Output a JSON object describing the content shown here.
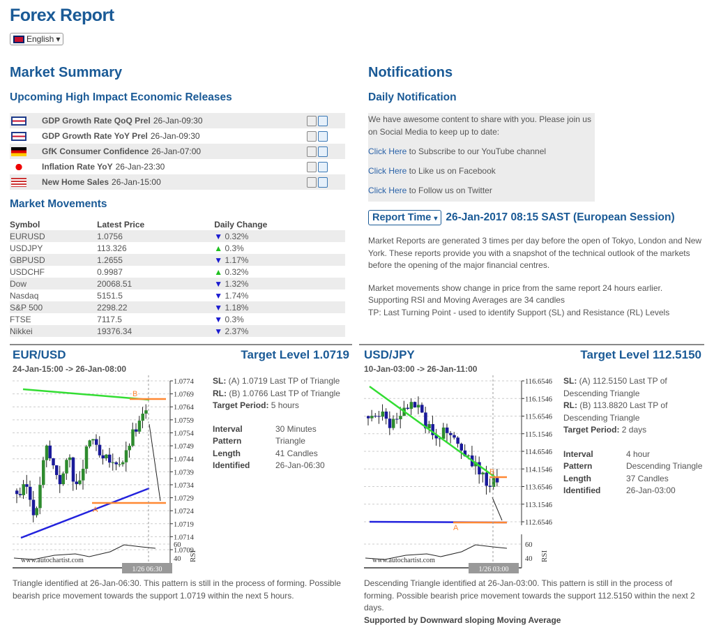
{
  "header": {
    "title": "Forex Report",
    "language": "English"
  },
  "market_summary": {
    "title": "Market Summary",
    "releases_title": "Upcoming High Impact Economic Releases",
    "releases": [
      {
        "flag": "uk-flag",
        "name": "GDP Growth Rate QoQ Prel",
        "time": "26-Jan-09:30"
      },
      {
        "flag": "uk-flag",
        "name": "GDP Growth Rate YoY Prel",
        "time": "26-Jan-09:30"
      },
      {
        "flag": "germany-flag",
        "name": "GfK Consumer Confidence",
        "time": "26-Jan-07:00"
      },
      {
        "flag": "japan-flag",
        "name": "Inflation Rate YoY",
        "time": "26-Jan-23:30"
      },
      {
        "flag": "us-flag",
        "name": "New Home Sales",
        "time": "26-Jan-15:00"
      }
    ],
    "movements_title": "Market Movements",
    "columns": [
      "Symbol",
      "Latest Price",
      "Daily Change"
    ],
    "movements": [
      {
        "symbol": "EURUSD",
        "price": "1.0756",
        "dir": "down",
        "change": "0.32%"
      },
      {
        "symbol": "USDJPY",
        "price": "113.326",
        "dir": "up",
        "change": "0.3%"
      },
      {
        "symbol": "GBPUSD",
        "price": "1.2655",
        "dir": "down",
        "change": "1.17%"
      },
      {
        "symbol": "USDCHF",
        "price": "0.9987",
        "dir": "up",
        "change": "0.32%"
      },
      {
        "symbol": "Dow",
        "price": "20068.51",
        "dir": "down",
        "change": "1.32%"
      },
      {
        "symbol": "Nasdaq",
        "price": "5151.5",
        "dir": "down",
        "change": "1.74%"
      },
      {
        "symbol": "S&P 500",
        "price": "2298.22",
        "dir": "down",
        "change": "1.18%"
      },
      {
        "symbol": "FTSE",
        "price": "7117.5",
        "dir": "down",
        "change": "0.3%"
      },
      {
        "symbol": "Nikkei",
        "price": "19376.34",
        "dir": "down",
        "change": "2.37%"
      }
    ]
  },
  "notifications": {
    "title": "Notifications",
    "daily_title": "Daily Notification",
    "intro": "We have awesome content to share with you. Please join us on Social Media to keep up to date:",
    "links": [
      {
        "link": "Click Here",
        "text": " to Subscribe to our YouTube channel"
      },
      {
        "link": "Click Here",
        "text": " to Like us on Facebook"
      },
      {
        "link": "Click Here",
        "text": " to Follow us on Twitter"
      }
    ],
    "report_time_label": "Report Time",
    "report_time": "26-Jan-2017 08:15 SAST (European Session)",
    "para1": "Market Reports are generated 3 times per day before the open of Tokyo, London and New York. These reports provide you with a snapshot of the technical outlook of the markets before the opening of the major financial centres.",
    "para2": "Market movements show change in price from the same report 24 hours earlier.",
    "para3": "Supporting RSI and Moving Averages are 34 candles",
    "para4": "TP: Last Turning Point - used to identify Support (SL) and Resistance (RL) Levels"
  },
  "colors": {
    "up": "#2e8b2e",
    "down": "#1a1a9a",
    "resistance": "#33dd33",
    "support": "#2222dd",
    "level": "#ff8833"
  },
  "charts": [
    {
      "pair": "EUR/USD",
      "target": "Target Level 1.0719",
      "range": "24-Jan-15:00 -> 26-Jan-08:00",
      "sl_label": "SL:",
      "sl": " (A) 1.0719 Last TP of Triangle",
      "rl_label": "RL:",
      "rl": " (B) 1.0766 Last TP of Triangle",
      "tp_label": "Target Period:",
      "tp": " 5 hours",
      "details": [
        [
          "Interval",
          "30 Minutes"
        ],
        [
          "Pattern",
          "Triangle"
        ],
        [
          "Length",
          "41 Candles"
        ],
        [
          "Identified",
          "26-Jan-06:30"
        ]
      ],
      "yticks": [
        "1.0774",
        "1.0769",
        "1.0764",
        "1.0759",
        "1.0754",
        "1.0749",
        "1.0744",
        "1.0739",
        "1.0734",
        "1.0729",
        "1.0724",
        "1.0719",
        "1.0714",
        "1.0709"
      ],
      "rsi_ticks": [
        "60",
        "40"
      ],
      "rsi_label": "RSI",
      "watermark": "www.autochartist.com",
      "time_marker": "1/26 06:30",
      "point_a": "A",
      "point_b": "B",
      "summary": "Triangle identified at 26-Jan-06:30. This pattern is still in the process of forming. Possible bearish price movement towards the support 1.0719 within the next 5 hours.",
      "extra": ""
    },
    {
      "pair": "USD/JPY",
      "target": "Target Level 112.5150",
      "range": "10-Jan-03:00 -> 26-Jan-11:00",
      "sl_label": "SL:",
      "sl": " (A) 112.5150 Last TP of Descending Triangle",
      "rl_label": "RL:",
      "rl": " (B) 113.8820 Last TP of Descending Triangle",
      "tp_label": "Target Period:",
      "tp": " 2 days",
      "details": [
        [
          "Interval",
          "4 hour"
        ],
        [
          "Pattern",
          "Descending Triangle"
        ],
        [
          "Length",
          "37 Candles"
        ],
        [
          "Identified",
          "26-Jan-03:00"
        ]
      ],
      "yticks": [
        "116.6546",
        "116.1546",
        "115.6546",
        "115.1546",
        "114.6546",
        "114.1546",
        "113.6546",
        "113.1546",
        "112.6546"
      ],
      "rsi_ticks": [
        "60",
        "40"
      ],
      "rsi_label": "RSI",
      "watermark": "www.autochartist.com",
      "time_marker": "1/26 03:00",
      "point_a": "A",
      "point_b": "B",
      "summary": "Descending Triangle identified at 26-Jan-03:00. This pattern is still in the process of forming. Possible bearish price movement towards the support 112.5150 within the next 2 days.",
      "extra": "Supported by Downward sloping Moving Average"
    }
  ]
}
